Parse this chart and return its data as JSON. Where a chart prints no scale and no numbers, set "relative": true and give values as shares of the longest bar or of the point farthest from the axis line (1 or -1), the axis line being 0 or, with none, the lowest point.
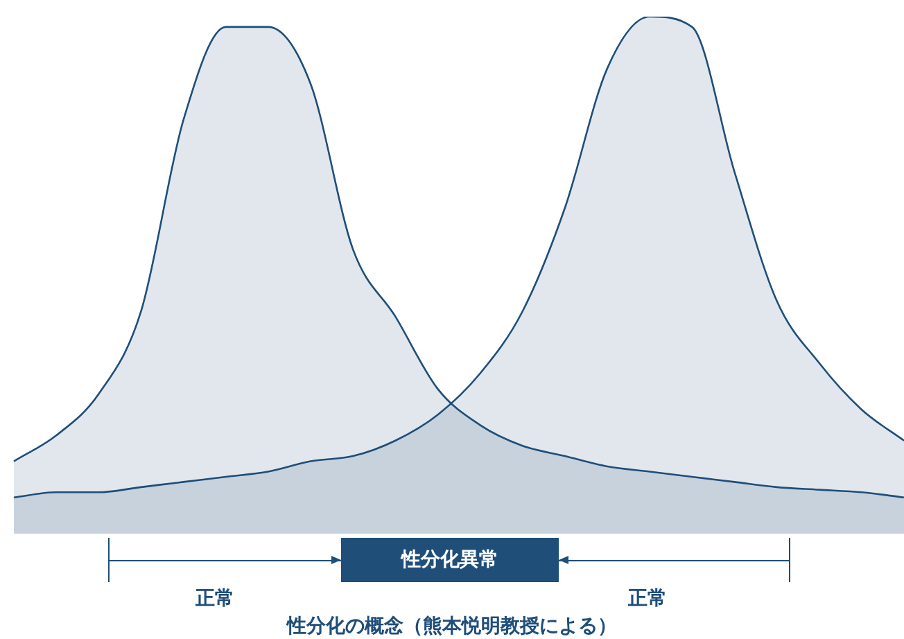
{
  "chart_data": {
    "type": "area",
    "relative": true,
    "title": "性分化の概念（熊本悦明教授による）",
    "categories": [
      null,
      null,
      null,
      null,
      null,
      null,
      null,
      null,
      null,
      null,
      null,
      null,
      null,
      null,
      null,
      null,
      null,
      null,
      null,
      null,
      null,
      null
    ],
    "series": [
      {
        "color": "#1f4e79",
        "values": [
          0.14,
          0.19,
          0.27,
          0.43,
          0.8,
          0.98,
          0.98,
          0.87,
          0.55,
          0.42,
          0.28,
          0.21,
          0.17,
          0.15,
          0.13,
          0.12,
          0.11,
          0.1,
          0.09,
          0.085,
          0.08,
          0.07
        ]
      },
      {
        "color": "#1f4e79",
        "values": [
          0.07,
          0.08,
          0.08,
          0.09,
          0.1,
          0.11,
          0.12,
          0.14,
          0.15,
          0.18,
          0.23,
          0.31,
          0.43,
          0.63,
          0.9,
          1,
          0.98,
          0.7,
          0.45,
          0.33,
          0.24,
          0.18
        ]
      }
    ],
    "annotations": [
      "正常",
      "性分化異常",
      "正常"
    ],
    "legend": false
  }
}
